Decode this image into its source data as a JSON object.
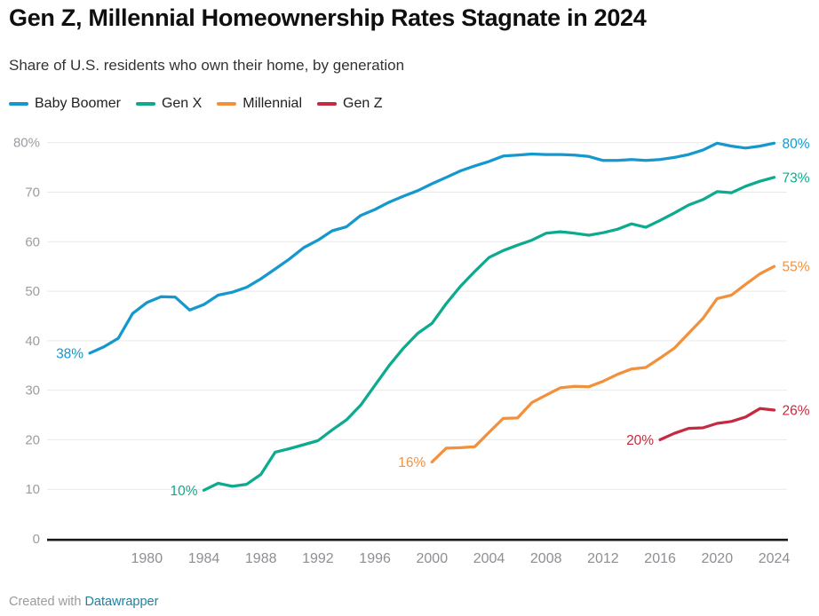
{
  "header": {
    "title": "Gen Z, Millennial Homeownership Rates Stagnate in 2024",
    "subtitle": "Share of U.S. residents who own their home, by generation"
  },
  "legend": {
    "items": [
      {
        "label": "Baby Boomer",
        "color": "#1598cd"
      },
      {
        "label": "Gen X",
        "color": "#0caa8e"
      },
      {
        "label": "Millennial",
        "color": "#f2913d"
      },
      {
        "label": "Gen Z",
        "color": "#c42b40"
      }
    ]
  },
  "chart_data": {
    "type": "line",
    "title": "Gen Z, Millennial Homeownership Rates Stagnate in 2024",
    "subtitle": "Share of U.S. residents who own their home, by generation",
    "xlabel": "",
    "ylabel": "Share of U.S. residents who own their home (%)",
    "ylim": [
      0,
      80
    ],
    "x_range": [
      1976,
      2024
    ],
    "grid": true,
    "legend_position": "top",
    "y_ticks": [
      {
        "v": 80,
        "label": "80%"
      },
      {
        "v": 70,
        "label": "70"
      },
      {
        "v": 60,
        "label": "60"
      },
      {
        "v": 50,
        "label": "50"
      },
      {
        "v": 40,
        "label": "40"
      },
      {
        "v": 30,
        "label": "30"
      },
      {
        "v": 20,
        "label": "20"
      },
      {
        "v": 10,
        "label": "10"
      },
      {
        "v": 0,
        "label": "0"
      }
    ],
    "x_ticks": [
      {
        "year": 1980,
        "label": "1980"
      },
      {
        "year": 1984,
        "label": "1984"
      },
      {
        "year": 1988,
        "label": "1988"
      },
      {
        "year": 1992,
        "label": "1992"
      },
      {
        "year": 1996,
        "label": "1996"
      },
      {
        "year": 2000,
        "label": "2000"
      },
      {
        "year": 2004,
        "label": "2004"
      },
      {
        "year": 2008,
        "label": "2008"
      },
      {
        "year": 2012,
        "label": "2012"
      },
      {
        "year": 2016,
        "label": "2016"
      },
      {
        "year": 2020,
        "label": "2020"
      }
    ],
    "x_tick_last": {
      "year": 2024,
      "label": "2024"
    },
    "series": [
      {
        "name": "Baby Boomer",
        "color": "#1598cd",
        "start_year": 1976,
        "start_label": "38%",
        "end_label": "80%",
        "values": [
          37.5,
          38.8,
          40.5,
          45.5,
          47.7,
          48.9,
          48.8,
          46.2,
          47.3,
          49.2,
          49.8,
          50.8,
          52.5,
          54.5,
          56.5,
          58.8,
          60.3,
          62.2,
          63.0,
          65.3,
          66.5,
          68.0,
          69.2,
          70.3,
          71.7,
          73.0,
          74.3,
          75.3,
          76.2,
          77.3,
          77.5,
          77.7,
          77.6,
          77.6,
          77.5,
          77.2,
          76.4,
          76.4,
          76.6,
          76.4,
          76.6,
          77.0,
          77.6,
          78.5,
          79.9,
          79.3,
          78.9,
          79.3,
          79.9
        ]
      },
      {
        "name": "Gen X",
        "color": "#0caa8e",
        "start_year": 1984,
        "start_label": "10%",
        "end_label": "73%",
        "values": [
          9.8,
          11.2,
          10.6,
          11.0,
          13.0,
          17.5,
          18.2,
          19.0,
          19.8,
          22.0,
          24.0,
          27.0,
          31.0,
          35.0,
          38.5,
          41.5,
          43.5,
          47.5,
          51.0,
          54.0,
          56.8,
          58.2,
          59.3,
          60.3,
          61.7,
          62.0,
          61.7,
          61.3,
          61.8,
          62.5,
          63.6,
          62.9,
          64.3,
          65.8,
          67.4,
          68.5,
          70.1,
          69.9,
          71.2,
          72.2,
          73.0
        ]
      },
      {
        "name": "Millennial",
        "color": "#f2913d",
        "start_year": 2000,
        "start_label": "16%",
        "end_label": "55%",
        "values": [
          15.5,
          18.3,
          18.4,
          18.6,
          21.5,
          24.3,
          24.4,
          27.5,
          29.0,
          30.5,
          30.8,
          30.7,
          31.8,
          33.2,
          34.3,
          34.6,
          36.5,
          38.5,
          41.5,
          44.5,
          48.5,
          49.2,
          51.4,
          53.5,
          55.0
        ]
      },
      {
        "name": "Gen Z",
        "color": "#c42b40",
        "start_year": 2016,
        "start_label": "20%",
        "end_label": "26%",
        "values": [
          20.0,
          21.3,
          22.3,
          22.4,
          23.3,
          23.7,
          24.6,
          26.3,
          26.0
        ]
      }
    ]
  },
  "footer": {
    "credit_prefix": "Created with",
    "credit_link": "Datawrapper"
  },
  "colors": {
    "gridline": "#e9e9e9",
    "axis_line": "#1a1a1a",
    "y_tick_text": "#9c9ca2",
    "x_tick_text": "#8e8e95"
  }
}
